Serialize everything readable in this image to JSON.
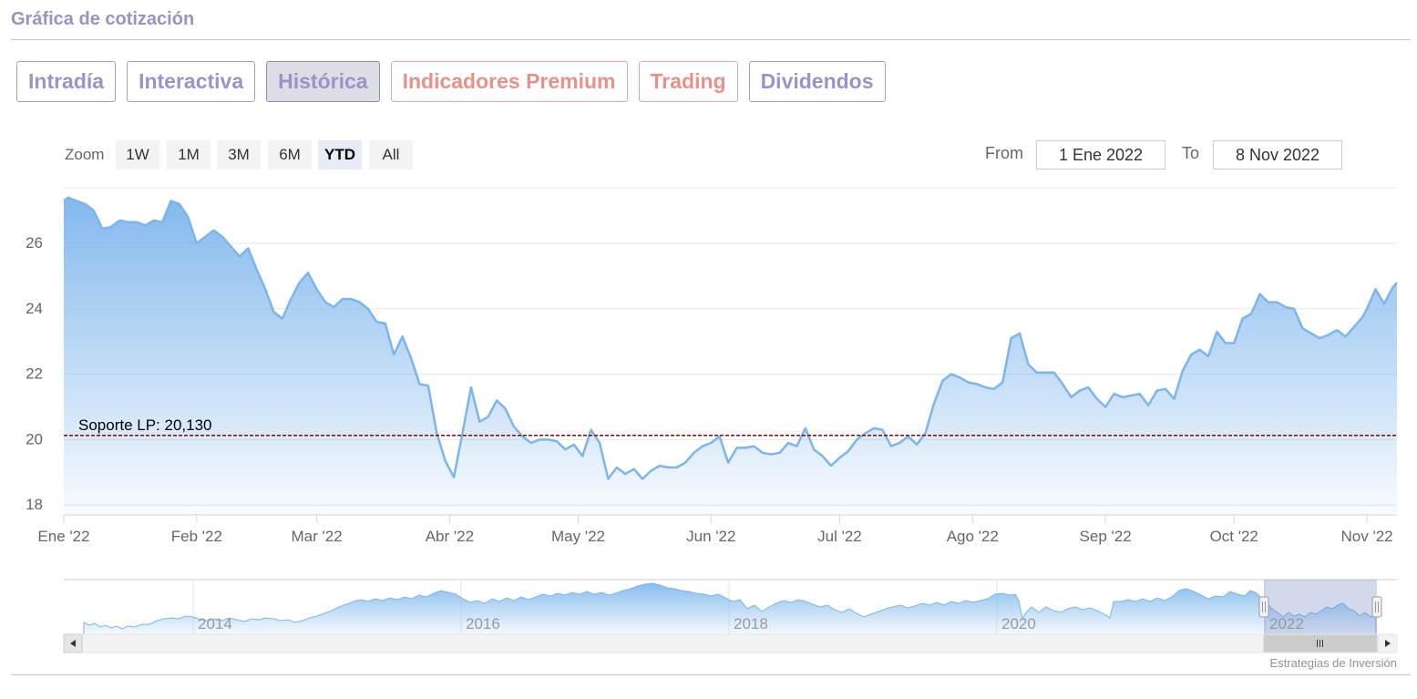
{
  "header": {
    "title": "Gráfica de cotización"
  },
  "tabs": [
    {
      "label": "Intradía",
      "style": "normal"
    },
    {
      "label": "Interactiva",
      "style": "normal"
    },
    {
      "label": "Histórica",
      "style": "active"
    },
    {
      "label": "Indicadores Premium",
      "style": "premium"
    },
    {
      "label": "Trading",
      "style": "premium"
    },
    {
      "label": "Dividendos",
      "style": "normal"
    }
  ],
  "range_selector": {
    "zoom_label": "Zoom",
    "buttons": [
      "1W",
      "1M",
      "3M",
      "6M",
      "YTD",
      "All"
    ],
    "selected": "YTD",
    "from_label": "From",
    "from_value": "1 Ene 2022",
    "to_label": "To",
    "to_value": "8 Nov 2022"
  },
  "colors": {
    "line": "#7cb5ec",
    "plot_line": "#8b0000",
    "accent": "#9a91c4",
    "premium": "#e6918a"
  },
  "chart_data": {
    "type": "area",
    "xlabel": "",
    "ylabel": "",
    "ylim": [
      17.7,
      27.7
    ],
    "y_ticks": [
      18,
      20,
      22,
      24,
      26
    ],
    "x_ticks": [
      "Ene '22",
      "Feb '22",
      "Mar '22",
      "Abr '22",
      "May '22",
      "Jun '22",
      "Jul '22",
      "Ago '22",
      "Sep '22",
      "Oct '22",
      "Nov '22"
    ],
    "x_tick_dates": [
      "2022-01-01",
      "2022-02-01",
      "2022-03-01",
      "2022-04-01",
      "2022-05-01",
      "2022-06-01",
      "2022-07-01",
      "2022-08-01",
      "2022-09-01",
      "2022-10-01",
      "2022-11-01"
    ],
    "x_range": [
      "2022-01-01",
      "2022-11-08"
    ],
    "grid": true,
    "plot_line": {
      "value": 20.13,
      "label": "Soporte LP: 20,130",
      "style": "dashed"
    },
    "series": [
      {
        "points": [
          [
            "2022-01-01",
            27.3
          ],
          [
            "2022-01-02",
            27.4
          ],
          [
            "2022-01-04",
            27.3
          ],
          [
            "2022-01-06",
            27.2
          ],
          [
            "2022-01-08",
            27.0
          ],
          [
            "2022-01-10",
            26.45
          ],
          [
            "2022-01-12",
            26.5
          ],
          [
            "2022-01-14",
            26.7
          ],
          [
            "2022-01-16",
            26.65
          ],
          [
            "2022-01-18",
            26.65
          ],
          [
            "2022-01-20",
            26.55
          ],
          [
            "2022-01-22",
            26.7
          ],
          [
            "2022-01-24",
            26.65
          ],
          [
            "2022-01-26",
            27.3
          ],
          [
            "2022-01-28",
            27.2
          ],
          [
            "2022-01-30",
            26.8
          ],
          [
            "2022-02-01",
            26.0
          ],
          [
            "2022-02-03",
            26.2
          ],
          [
            "2022-02-05",
            26.4
          ],
          [
            "2022-02-07",
            26.2
          ],
          [
            "2022-02-09",
            25.9
          ],
          [
            "2022-02-11",
            25.6
          ],
          [
            "2022-02-13",
            25.85
          ],
          [
            "2022-02-15",
            25.2
          ],
          [
            "2022-02-17",
            24.6
          ],
          [
            "2022-02-19",
            23.9
          ],
          [
            "2022-02-21",
            23.7
          ],
          [
            "2022-02-23",
            24.3
          ],
          [
            "2022-02-25",
            24.8
          ],
          [
            "2022-02-27",
            25.1
          ],
          [
            "2022-03-01",
            24.6
          ],
          [
            "2022-03-03",
            24.2
          ],
          [
            "2022-03-05",
            24.05
          ],
          [
            "2022-03-07",
            24.3
          ],
          [
            "2022-03-09",
            24.3
          ],
          [
            "2022-03-11",
            24.2
          ],
          [
            "2022-03-13",
            24.0
          ],
          [
            "2022-03-15",
            23.6
          ],
          [
            "2022-03-17",
            23.55
          ],
          [
            "2022-03-19",
            22.6
          ],
          [
            "2022-03-21",
            23.15
          ],
          [
            "2022-03-23",
            22.5
          ],
          [
            "2022-03-25",
            21.7
          ],
          [
            "2022-03-27",
            21.65
          ],
          [
            "2022-03-29",
            20.2
          ],
          [
            "2022-03-31",
            19.35
          ],
          [
            "2022-04-02",
            18.85
          ],
          [
            "2022-04-04",
            20.2
          ],
          [
            "2022-04-06",
            21.6
          ],
          [
            "2022-04-08",
            20.55
          ],
          [
            "2022-04-10",
            20.7
          ],
          [
            "2022-04-12",
            21.2
          ],
          [
            "2022-04-14",
            20.95
          ],
          [
            "2022-04-16",
            20.4
          ],
          [
            "2022-04-18",
            20.1
          ],
          [
            "2022-04-20",
            19.9
          ],
          [
            "2022-04-22",
            20.0
          ],
          [
            "2022-04-24",
            20.0
          ],
          [
            "2022-04-26",
            19.95
          ],
          [
            "2022-04-28",
            19.7
          ],
          [
            "2022-04-30",
            19.85
          ],
          [
            "2022-05-02",
            19.5
          ],
          [
            "2022-05-04",
            20.3
          ],
          [
            "2022-05-06",
            19.9
          ],
          [
            "2022-05-08",
            18.8
          ],
          [
            "2022-05-10",
            19.15
          ],
          [
            "2022-05-12",
            18.95
          ],
          [
            "2022-05-14",
            19.1
          ],
          [
            "2022-05-16",
            18.8
          ],
          [
            "2022-05-18",
            19.05
          ],
          [
            "2022-05-20",
            19.2
          ],
          [
            "2022-05-22",
            19.15
          ],
          [
            "2022-05-24",
            19.15
          ],
          [
            "2022-05-26",
            19.3
          ],
          [
            "2022-05-28",
            19.6
          ],
          [
            "2022-05-30",
            19.8
          ],
          [
            "2022-06-01",
            19.9
          ],
          [
            "2022-06-03",
            20.1
          ],
          [
            "2022-06-05",
            19.3
          ],
          [
            "2022-06-07",
            19.75
          ],
          [
            "2022-06-09",
            19.75
          ],
          [
            "2022-06-11",
            19.8
          ],
          [
            "2022-06-13",
            19.6
          ],
          [
            "2022-06-15",
            19.55
          ],
          [
            "2022-06-17",
            19.6
          ],
          [
            "2022-06-19",
            19.9
          ],
          [
            "2022-06-21",
            19.8
          ],
          [
            "2022-06-23",
            20.35
          ],
          [
            "2022-06-25",
            19.7
          ],
          [
            "2022-06-27",
            19.5
          ],
          [
            "2022-06-29",
            19.2
          ],
          [
            "2022-07-01",
            19.45
          ],
          [
            "2022-07-03",
            19.65
          ],
          [
            "2022-07-05",
            20.0
          ],
          [
            "2022-07-07",
            20.2
          ],
          [
            "2022-07-09",
            20.35
          ],
          [
            "2022-07-11",
            20.3
          ],
          [
            "2022-07-13",
            19.8
          ],
          [
            "2022-07-15",
            19.9
          ],
          [
            "2022-07-17",
            20.1
          ],
          [
            "2022-07-19",
            19.85
          ],
          [
            "2022-07-21",
            20.2
          ],
          [
            "2022-07-23",
            21.1
          ],
          [
            "2022-07-25",
            21.8
          ],
          [
            "2022-07-27",
            22.0
          ],
          [
            "2022-07-29",
            21.9
          ],
          [
            "2022-07-31",
            21.75
          ],
          [
            "2022-08-02",
            21.7
          ],
          [
            "2022-08-04",
            21.6
          ],
          [
            "2022-08-06",
            21.55
          ],
          [
            "2022-08-08",
            21.75
          ],
          [
            "2022-08-10",
            23.1
          ],
          [
            "2022-08-12",
            23.25
          ],
          [
            "2022-08-14",
            22.3
          ],
          [
            "2022-08-16",
            22.05
          ],
          [
            "2022-08-18",
            22.05
          ],
          [
            "2022-08-20",
            22.05
          ],
          [
            "2022-08-22",
            21.7
          ],
          [
            "2022-08-24",
            21.3
          ],
          [
            "2022-08-26",
            21.5
          ],
          [
            "2022-08-28",
            21.6
          ],
          [
            "2022-08-30",
            21.25
          ],
          [
            "2022-09-01",
            21.0
          ],
          [
            "2022-09-03",
            21.4
          ],
          [
            "2022-09-05",
            21.3
          ],
          [
            "2022-09-07",
            21.35
          ],
          [
            "2022-09-09",
            21.4
          ],
          [
            "2022-09-11",
            21.05
          ],
          [
            "2022-09-13",
            21.5
          ],
          [
            "2022-09-15",
            21.55
          ],
          [
            "2022-09-17",
            21.25
          ],
          [
            "2022-09-19",
            22.1
          ],
          [
            "2022-09-21",
            22.6
          ],
          [
            "2022-09-23",
            22.75
          ],
          [
            "2022-09-25",
            22.55
          ],
          [
            "2022-09-27",
            23.3
          ],
          [
            "2022-09-29",
            22.95
          ],
          [
            "2022-10-01",
            22.95
          ],
          [
            "2022-10-03",
            23.7
          ],
          [
            "2022-10-05",
            23.85
          ],
          [
            "2022-10-07",
            24.45
          ],
          [
            "2022-10-09",
            24.2
          ],
          [
            "2022-10-11",
            24.2
          ],
          [
            "2022-10-13",
            24.05
          ],
          [
            "2022-10-15",
            24.0
          ],
          [
            "2022-10-17",
            23.4
          ],
          [
            "2022-10-19",
            23.25
          ],
          [
            "2022-10-21",
            23.1
          ],
          [
            "2022-10-23",
            23.2
          ],
          [
            "2022-10-25",
            23.35
          ],
          [
            "2022-10-27",
            23.15
          ],
          [
            "2022-10-29",
            23.45
          ],
          [
            "2022-10-31",
            23.75
          ],
          [
            "2022-11-01",
            24.0
          ],
          [
            "2022-11-03",
            24.6
          ],
          [
            "2022-11-05",
            24.15
          ],
          [
            "2022-11-07",
            24.65
          ],
          [
            "2022-11-08",
            24.8
          ]
        ]
      }
    ]
  },
  "navigator": {
    "year_labels": [
      "2014",
      "2016",
      "2018",
      "2020",
      "2022"
    ],
    "credits": "Estrategias de Inversión"
  }
}
